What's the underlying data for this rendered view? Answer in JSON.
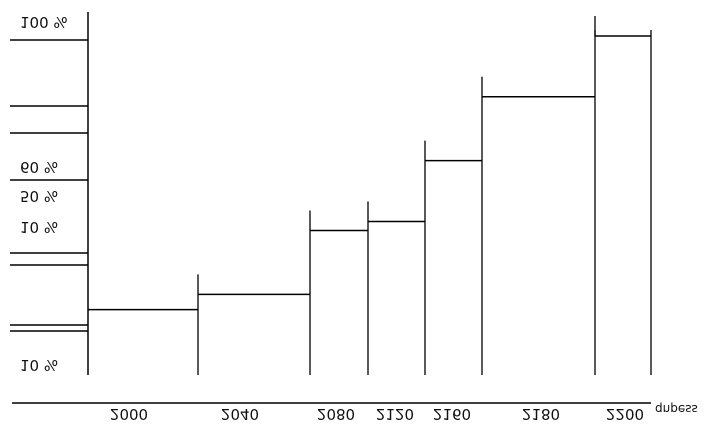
{
  "chart_data": {
    "type": "bar",
    "title": "",
    "xlabel": "",
    "ylabel": "",
    "x_unit_label": "qnpess",
    "categories": [
      "2000",
      "2040",
      "2080",
      "2120",
      "2160",
      "2180",
      "2200"
    ],
    "series": [
      {
        "values": [
          10,
          15,
          36,
          39,
          59,
          80,
          100
        ]
      }
    ],
    "y_tick_labels": [
      "100 %",
      "60 %",
      "50 %",
      "10 %",
      "10 %"
    ],
    "x_tick_labels": [
      "2000",
      "2040",
      "2080",
      "2120",
      "2160",
      "2180",
      "2200"
    ],
    "ylim": [
      0,
      100
    ],
    "grid": false,
    "legend": "none",
    "colors": {
      "line": "#000000",
      "text": "#111111",
      "background": "#ffffff"
    }
  }
}
